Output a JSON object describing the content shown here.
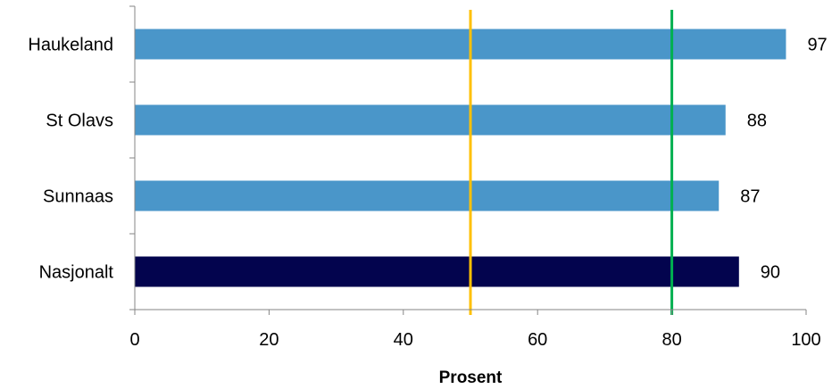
{
  "chart_data": {
    "type": "bar",
    "orientation": "horizontal",
    "categories": [
      "Haukeland",
      "St Olavs",
      "Sunnaas",
      "Nasjonalt"
    ],
    "values": [
      97,
      88,
      87,
      90
    ],
    "data_labels": [
      "97",
      "88",
      "87",
      "90"
    ],
    "bar_colors": [
      "#4a96c9",
      "#4a96c9",
      "#4a96c9",
      "#03044e"
    ],
    "xlabel": "Prosent",
    "xlim": [
      0,
      100
    ],
    "xticks": [
      0,
      20,
      40,
      60,
      80,
      100
    ],
    "xtick_labels": [
      "0",
      "20",
      "40",
      "60",
      "80",
      "100"
    ],
    "reference_lines": [
      {
        "value": 50,
        "color": "#ffc000"
      },
      {
        "value": 80,
        "color": "#00b050"
      }
    ],
    "grid": false,
    "legend": "none"
  }
}
